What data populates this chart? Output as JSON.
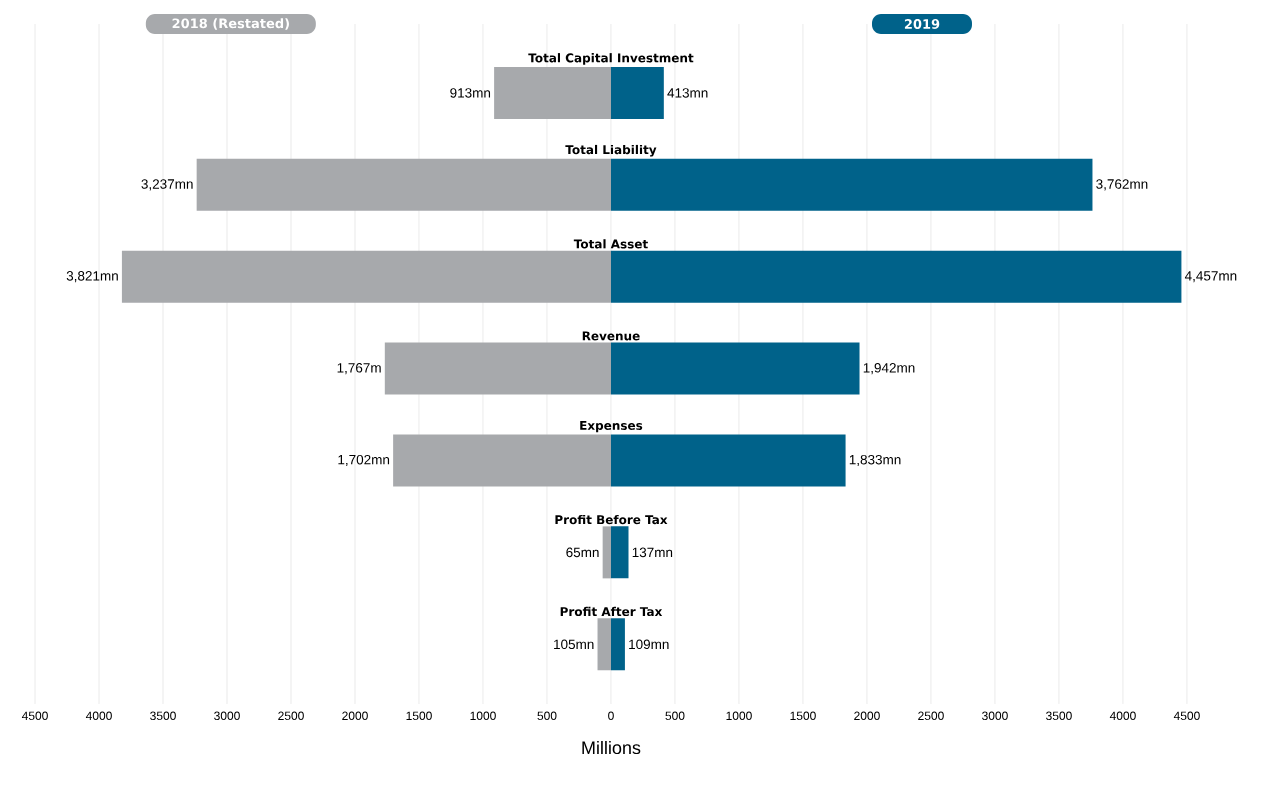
{
  "chart_data": {
    "type": "bar",
    "orientation": "horizontal",
    "xlabel": "Millions",
    "categories": [
      "Total Capital Investment",
      "Total Liability",
      "Total Asset",
      "Revenue",
      "Expenses",
      "Profit Before Tax",
      "Profit After Tax"
    ],
    "series": [
      {
        "name": "2018 (Restated)",
        "color": "#a7a9ac",
        "base": [
          -913,
          -3237,
          -3821,
          -1767,
          -1702,
          -65,
          -105
        ],
        "values": [
          913,
          3237,
          3821,
          1767,
          1702,
          65,
          105
        ],
        "value_labels": [
          "913mn",
          "3,237mn",
          "3,821mn",
          "1,767m",
          "1,702mn",
          "65mn",
          "105mn"
        ]
      },
      {
        "name": "2019",
        "color": "#00628a",
        "values": [
          413,
          3762,
          4457,
          1942,
          1833,
          137,
          109
        ],
        "value_labels": [
          "413mn",
          "3,762mn",
          "4,457mn",
          "1,942mn",
          "1,833mn",
          "137mn",
          "109mn"
        ]
      }
    ],
    "xlim": [
      -4500,
      4500
    ],
    "xticks": [
      {
        "value": -4500,
        "label": "4500"
      },
      {
        "value": -4000,
        "label": "4000"
      },
      {
        "value": -3500,
        "label": "3500"
      },
      {
        "value": -3000,
        "label": "3000"
      },
      {
        "value": -2500,
        "label": "2500"
      },
      {
        "value": -2000,
        "label": "2000"
      },
      {
        "value": -1500,
        "label": "1500"
      },
      {
        "value": -1000,
        "label": "1000"
      },
      {
        "value": -500,
        "label": "500"
      },
      0,
      500,
      1000,
      1500,
      2000,
      2500,
      3000,
      3500,
      4000,
      4500
    ],
    "grid": "x",
    "legend": "top"
  }
}
